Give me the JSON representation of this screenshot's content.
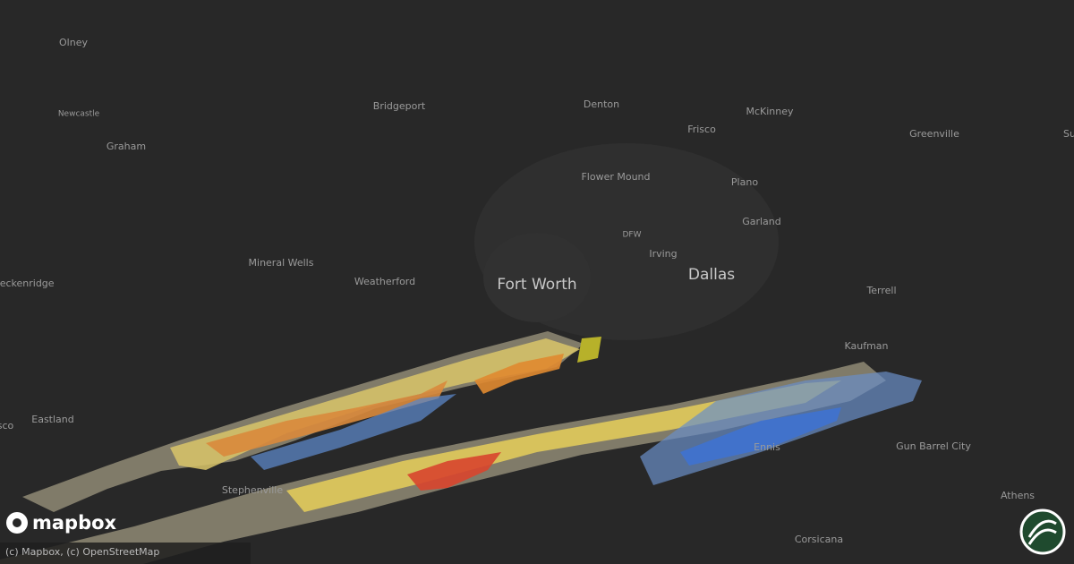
{
  "map": {
    "cities": [
      "Olney",
      "Newcastle",
      "Graham",
      "Bridgeport",
      "Denton",
      "Frisco",
      "McKinney",
      "Greenville",
      "Su",
      "Flower Mound",
      "Plano",
      "Garland",
      "DFW",
      "Irving",
      "Mineral Wells",
      "Weatherford",
      "reckenridge",
      "Terrell",
      "Kaufman",
      "Eastland",
      "sco",
      "Stephenville",
      "Ennis",
      "Gun Barrel City",
      "Athens",
      "Corsicana"
    ],
    "major_cities": [
      "Fort Worth",
      "Dallas"
    ],
    "logo": "mapbox",
    "attribution": "(c) Mapbox, (c) OpenStreetMap"
  }
}
